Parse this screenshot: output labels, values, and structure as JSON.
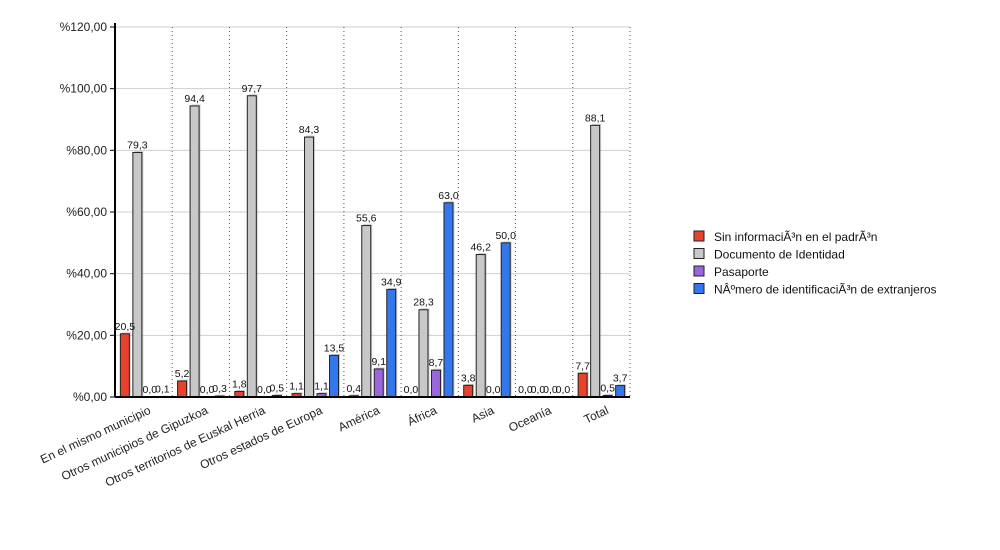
{
  "chart_data": {
    "type": "bar",
    "title": "",
    "xlabel": "",
    "ylabel": "",
    "ylim": [
      0,
      120
    ],
    "y_ticks": [
      "%0,00",
      "%20,00",
      "%40,00",
      "%60,00",
      "%80,00",
      "%100,00",
      "%120,00"
    ],
    "grid": "horizontal solid, vertical dotted",
    "legend_position": "right",
    "categories": [
      "En el mismo municipio",
      "Otros municipios de Gipuzkoa",
      "Otros territorios de Euskal Herria",
      "Otros estados de Europa",
      "América",
      "África",
      "Asia",
      "Oceanía",
      "Total"
    ],
    "series": [
      {
        "name": "Sin informaciÃ³n en el padrÃ³n",
        "color": "#e8412c",
        "values": [
          20.5,
          5.2,
          1.8,
          1.1,
          0.4,
          0.0,
          3.8,
          0.0,
          7.7
        ],
        "labels": [
          "20,5",
          "5,2",
          "1,8",
          "1,1",
          "0,4",
          "0,0",
          "3,8",
          "0,0",
          "7,7"
        ]
      },
      {
        "name": "Documento de Identidad",
        "color": "#c8c8c8",
        "values": [
          79.3,
          94.4,
          97.7,
          84.3,
          55.6,
          28.3,
          46.2,
          0.0,
          88.1
        ],
        "labels": [
          "79,3",
          "94,4",
          "97,7",
          "84,3",
          "55,6",
          "28,3",
          "46,2",
          "0,0",
          "88,1"
        ]
      },
      {
        "name": "Pasaporte",
        "color": "#9966dd",
        "values": [
          0.0,
          0.0,
          0.0,
          1.1,
          9.1,
          8.7,
          0.0,
          0.0,
          0.5
        ],
        "labels": [
          "0,0",
          "0,0",
          "0,0",
          "1,1",
          "9,1",
          "8,7",
          "0,0",
          "0,0",
          "0,5"
        ]
      },
      {
        "name": "NÂºmero de identificaciÃ³n de extranjeros",
        "color": "#3377ee",
        "values": [
          0.1,
          0.3,
          0.5,
          13.5,
          34.9,
          63.0,
          50.0,
          0.0,
          3.7
        ],
        "labels": [
          "0,1",
          "0,3",
          "0,5",
          "13,5",
          "34,9",
          "63,0",
          "50,0",
          "0,0",
          "3,7"
        ]
      }
    ]
  }
}
